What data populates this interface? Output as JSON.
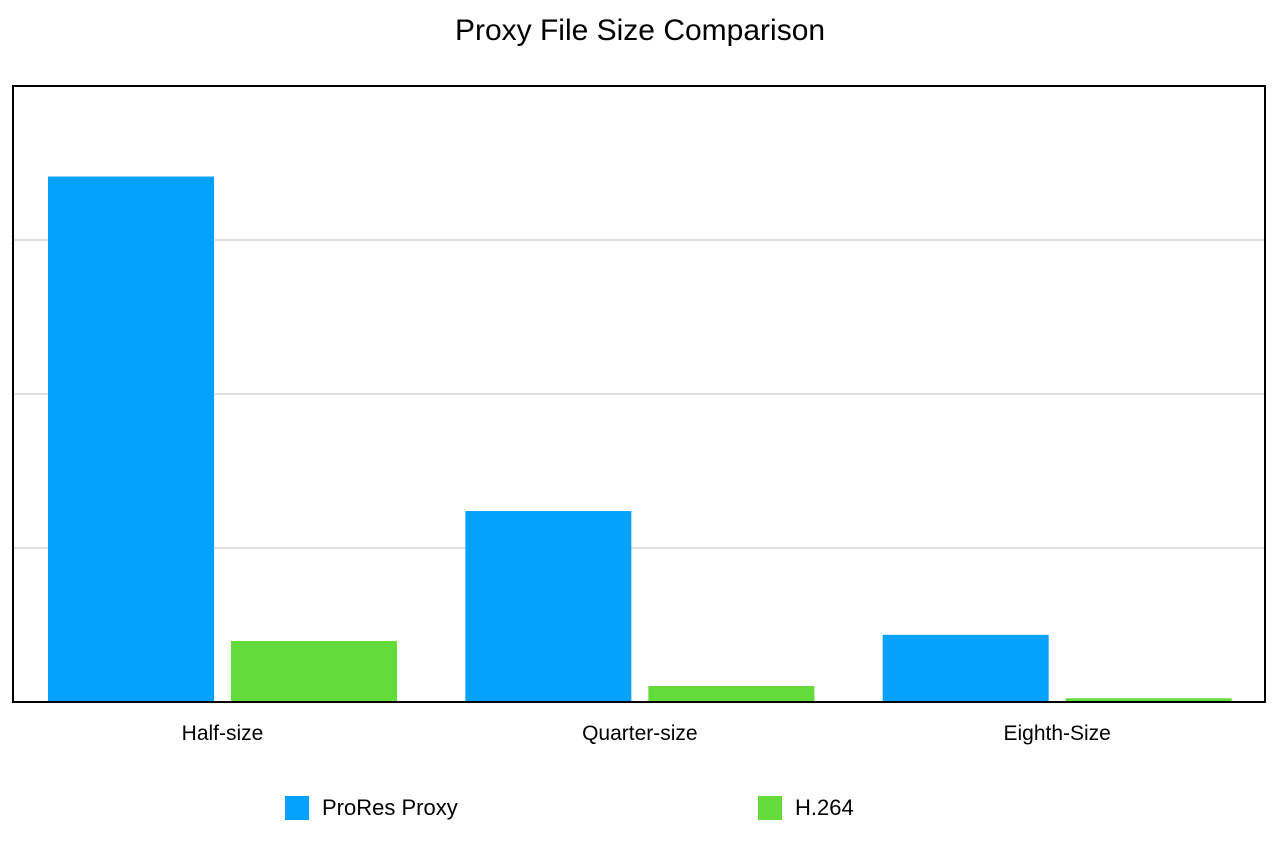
{
  "chart_data": {
    "type": "bar",
    "title": "Proxy File Size Comparison",
    "categories": [
      "Half-size",
      "Quarter-size",
      "Eighth-Size"
    ],
    "series": [
      {
        "name": "ProRes Proxy",
        "color": "#05a2fd",
        "values": [
          85.3,
          31.0,
          10.9
        ]
      },
      {
        "name": "H.264",
        "color": "#63db3a",
        "values": [
          9.9,
          2.6,
          0.6
        ]
      }
    ],
    "xlabel": "",
    "ylabel": "",
    "ylim": [
      0,
      100
    ],
    "gridlines": [
      25,
      50,
      75
    ],
    "grid": true,
    "legend_position": "bottom"
  }
}
